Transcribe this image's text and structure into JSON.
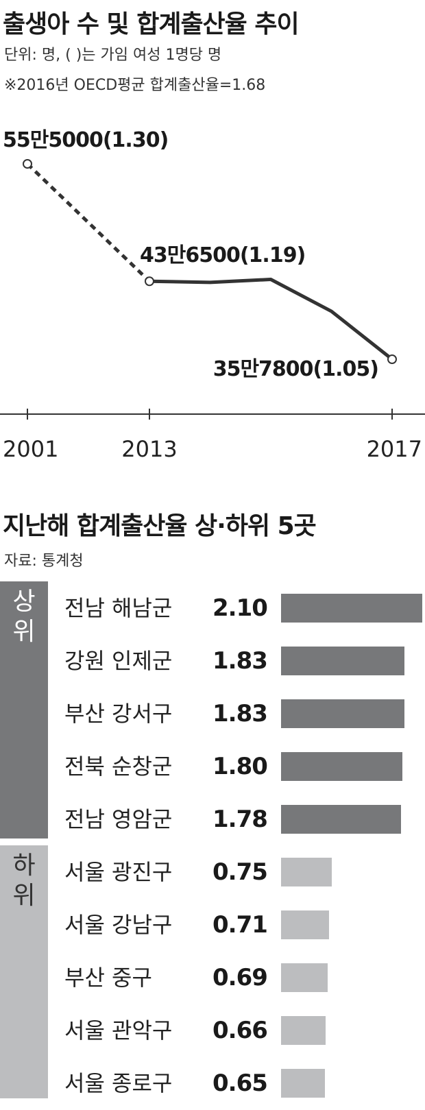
{
  "title": "출생아 수 및 합계출산율 추이",
  "unit_note": "단위: 명, ( )는 가임 여성 1명당 명",
  "oecd_note": "※2016년 OECD평균 합계출산율=1.68",
  "chart_data": [
    {
      "type": "line",
      "x": [
        2001,
        2013,
        2014,
        2015,
        2016,
        2017
      ],
      "series": [
        {
          "values": [
            555000,
            436500,
            435400,
            438400,
            406200,
            357800
          ]
        }
      ],
      "dashed_segment": [
        2001,
        2013
      ],
      "x_ticks": [
        "2001",
        "2013",
        "2017"
      ],
      "labels": [
        {
          "x": 2001,
          "text": "55만5000(1.30)"
        },
        {
          "x": 2013,
          "text": "43만6500(1.19)"
        },
        {
          "x": 2017,
          "text": "35만7800(1.05)"
        }
      ],
      "grid": false,
      "color": "#333333"
    },
    {
      "type": "bar",
      "title": "지난해 합계출산율 상·하위 5곳",
      "source": "자료: 통계청",
      "groups": [
        {
          "label": [
            "상",
            "위"
          ],
          "color": "#77787a",
          "categories": [
            "전남 해남군",
            "강원 인제군",
            "부산 강서구",
            "전북 순창군",
            "전남 영암군"
          ],
          "values": [
            2.1,
            1.83,
            1.83,
            1.8,
            1.78
          ],
          "value_labels": [
            "2.10",
            "1.83",
            "1.83",
            "1.80",
            "1.78"
          ]
        },
        {
          "label": [
            "하",
            "위"
          ],
          "color": "#bcbdbf",
          "categories": [
            "서울 광진구",
            "서울 강남구",
            "부산 중구",
            "서울 관악구",
            "서울 종로구"
          ],
          "values": [
            0.75,
            0.71,
            0.69,
            0.66,
            0.65
          ],
          "value_labels": [
            "0.75",
            "0.71",
            "0.69",
            "0.66",
            "0.65"
          ]
        }
      ]
    }
  ]
}
